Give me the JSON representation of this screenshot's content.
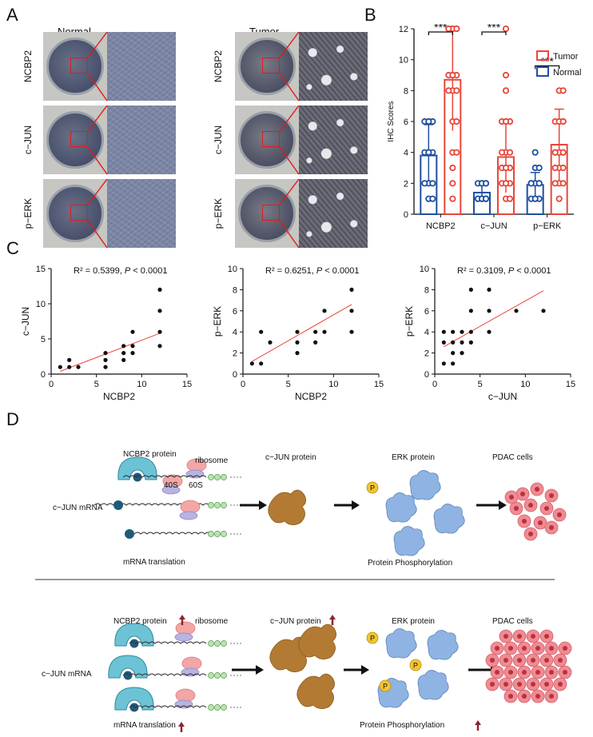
{
  "panels": {
    "A": {
      "letter": "A",
      "col_normal": "Normal",
      "col_tumor": "Tumor",
      "rows": [
        "NCBP2",
        "c−JUN",
        "p−ERK"
      ]
    },
    "B": {
      "letter": "B"
    },
    "C": {
      "letter": "C"
    },
    "D": {
      "letter": "D",
      "top": {
        "ncbp2_protein": "NCBP2 protein",
        "ribosome": "ribosome",
        "s40": "40S",
        "s60": "60S",
        "cjun_mrna": "c−JUN mRNA",
        "mrna_translation": "mRNA translation",
        "cjun_protein": "c−JUN protein",
        "erk_protein": "ERK protein",
        "pdac_cells": "PDAC cells",
        "protein_phos": "Protein Phosphorylation"
      },
      "bottom": {
        "ncbp2_protein": "NCBP2 protein",
        "ribosome": "ribosome",
        "cjun_mrna": "c−JUN mRNA",
        "mrna_translation": "mRNA translation",
        "cjun_protein": "c−JUN protein",
        "erk_protein": "ERK protein",
        "pdac_cells": "PDAC cells",
        "protein_phos": "Protein Phosphorylation"
      },
      "phospho_label": "P",
      "cap_label": "m7G",
      "polya_label": "AAA"
    }
  },
  "colors": {
    "tumor": "#e8473a",
    "normal": "#1f4fa0",
    "fitline": "#e8473a",
    "arrow": "#e01b1b"
  },
  "chart_data": [
    {
      "type": "bar",
      "panel": "B",
      "ylabel": "IHC Scores",
      "categories": [
        "NCBP2",
        "c−JUN",
        "p−ERK"
      ],
      "ylim": [
        0,
        12
      ],
      "yticks": [
        0,
        2,
        4,
        6,
        8,
        10,
        12
      ],
      "legend": [
        "Tumor",
        "Normal"
      ],
      "legend_position": "top-right",
      "significance": "***",
      "series": [
        {
          "name": "Normal",
          "values": [
            3.8,
            1.4,
            1.9
          ],
          "sd": [
            2.0,
            0.5,
            0.8
          ],
          "points": [
            [
              1,
              2,
              2,
              4,
              4,
              4,
              6,
              6,
              6,
              6,
              1,
              2,
              4
            ],
            [
              1,
              1,
              1,
              1,
              1,
              1,
              2,
              2,
              2,
              2,
              1,
              1,
              2
            ],
            [
              1,
              1,
              1,
              2,
              2,
              2,
              2,
              3,
              3,
              4,
              1,
              2,
              2
            ]
          ]
        },
        {
          "name": "Tumor",
          "values": [
            8.7,
            3.7,
            4.5
          ],
          "sd": [
            3.3,
            2.3,
            2.3
          ],
          "points": [
            [
              1,
              2,
              3,
              4,
              6,
              8,
              8,
              9,
              9,
              9,
              9,
              12,
              12,
              12,
              12,
              12,
              12,
              6,
              4,
              8
            ],
            [
              1,
              1,
              2,
              2,
              2,
              3,
              3,
              3,
              4,
              4,
              4,
              6,
              6,
              6,
              6,
              8,
              9,
              12,
              3,
              2
            ],
            [
              1,
              2,
              2,
              3,
              3,
              4,
              4,
              4,
              4,
              4,
              6,
              6,
              6,
              6,
              6,
              8,
              8,
              2,
              4,
              3
            ]
          ]
        }
      ]
    },
    {
      "type": "scatter",
      "panel": "C1",
      "xlabel": "NCBP2",
      "ylabel": "c−JUN",
      "xlim": [
        0,
        15
      ],
      "ylim": [
        0,
        15
      ],
      "xticks": [
        0,
        5,
        10,
        15
      ],
      "yticks": [
        0,
        5,
        10,
        15
      ],
      "annotation_r2": "R² = 0.5399,",
      "annotation_p": "P",
      "annotation_pval": "< 0.0001",
      "points": [
        [
          1,
          1
        ],
        [
          2,
          1
        ],
        [
          2,
          2
        ],
        [
          3,
          1
        ],
        [
          6,
          1
        ],
        [
          6,
          2
        ],
        [
          6,
          3
        ],
        [
          8,
          2
        ],
        [
          8,
          3
        ],
        [
          8,
          4
        ],
        [
          9,
          3
        ],
        [
          9,
          4
        ],
        [
          9,
          6
        ],
        [
          12,
          4
        ],
        [
          12,
          6
        ],
        [
          12,
          9
        ],
        [
          12,
          12
        ]
      ],
      "fit": [
        [
          1,
          0.4
        ],
        [
          12,
          5.8
        ]
      ]
    },
    {
      "type": "scatter",
      "panel": "C2",
      "xlabel": "NCBP2",
      "ylabel": "p−ERK",
      "xlim": [
        0,
        15
      ],
      "ylim": [
        0,
        10
      ],
      "xticks": [
        0,
        5,
        10,
        15
      ],
      "yticks": [
        0,
        2,
        4,
        6,
        8,
        10
      ],
      "annotation_r2": "R² = 0.6251,",
      "annotation_p": "P",
      "annotation_pval": "< 0.0001",
      "points": [
        [
          1,
          1
        ],
        [
          2,
          1
        ],
        [
          2,
          4
        ],
        [
          3,
          3
        ],
        [
          6,
          2
        ],
        [
          6,
          3
        ],
        [
          6,
          4
        ],
        [
          8,
          3
        ],
        [
          8,
          4
        ],
        [
          9,
          4
        ],
        [
          9,
          6
        ],
        [
          12,
          4
        ],
        [
          12,
          6
        ],
        [
          12,
          8
        ]
      ],
      "fit": [
        [
          1,
          1.2
        ],
        [
          12,
          6.6
        ]
      ]
    },
    {
      "type": "scatter",
      "panel": "C3",
      "xlabel": "c−JUN",
      "ylabel": "p−ERK",
      "xlim": [
        0,
        15
      ],
      "ylim": [
        0,
        10
      ],
      "xticks": [
        0,
        5,
        10,
        15
      ],
      "yticks": [
        0,
        2,
        4,
        6,
        8,
        10
      ],
      "annotation_r2": "R² = 0.3109,",
      "annotation_p": "P",
      "annotation_pval": "< 0.0001",
      "points": [
        [
          1,
          1
        ],
        [
          1,
          3
        ],
        [
          1,
          4
        ],
        [
          2,
          1
        ],
        [
          2,
          2
        ],
        [
          2,
          3
        ],
        [
          2,
          4
        ],
        [
          3,
          2
        ],
        [
          3,
          3
        ],
        [
          3,
          4
        ],
        [
          4,
          3
        ],
        [
          4,
          4
        ],
        [
          4,
          6
        ],
        [
          4,
          8
        ],
        [
          6,
          4
        ],
        [
          6,
          6
        ],
        [
          6,
          8
        ],
        [
          9,
          6
        ],
        [
          12,
          6
        ]
      ],
      "fit": [
        [
          1,
          2.6
        ],
        [
          12,
          7.9
        ]
      ]
    }
  ]
}
